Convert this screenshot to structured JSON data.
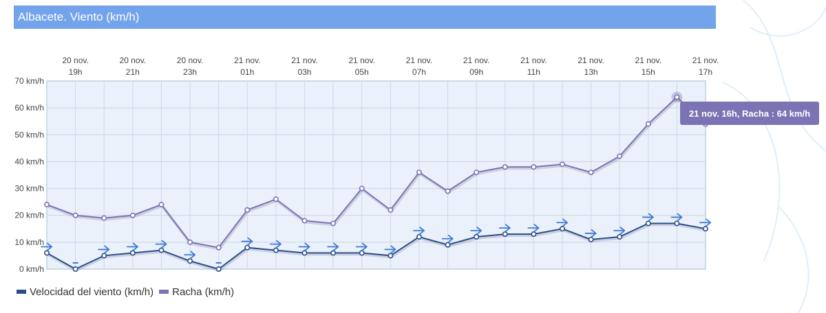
{
  "title": "Albacete. Viento (km/h)",
  "colors": {
    "title_bg": "#72a3eb",
    "plot_bg": "#eaf1fb",
    "plot_border": "#a8c3ee",
    "wind": "#2a4d8a",
    "gust": "#7b73b3",
    "arrow": "#3f7ad6",
    "tooltip_bg": "#7b73b3"
  },
  "chart_data": {
    "type": "line",
    "x": [
      "20 nov. 18h",
      "20 nov. 19h",
      "20 nov. 20h",
      "20 nov. 21h",
      "20 nov. 22h",
      "20 nov. 23h",
      "21 nov. 00h",
      "21 nov. 01h",
      "21 nov. 02h",
      "21 nov. 03h",
      "21 nov. 04h",
      "21 nov. 05h",
      "21 nov. 06h",
      "21 nov. 07h",
      "21 nov. 08h",
      "21 nov. 09h",
      "21 nov. 10h",
      "21 nov. 11h",
      "21 nov. 12h",
      "21 nov. 13h",
      "21 nov. 14h",
      "21 nov. 15h",
      "21 nov. 16h",
      "21 nov. 17h"
    ],
    "x_ticks": [
      {
        "top": "20 nov.",
        "bottom": "19h"
      },
      {
        "top": "20 nov.",
        "bottom": "21h"
      },
      {
        "top": "20 nov.",
        "bottom": "23h"
      },
      {
        "top": "21 nov.",
        "bottom": "01h"
      },
      {
        "top": "21 nov.",
        "bottom": "03h"
      },
      {
        "top": "21 nov.",
        "bottom": "05h"
      },
      {
        "top": "21 nov.",
        "bottom": "07h"
      },
      {
        "top": "21 nov.",
        "bottom": "09h"
      },
      {
        "top": "21 nov.",
        "bottom": "11h"
      },
      {
        "top": "21 nov.",
        "bottom": "13h"
      },
      {
        "top": "21 nov.",
        "bottom": "15h"
      },
      {
        "top": "21 nov.",
        "bottom": "17h"
      }
    ],
    "y_ticks": [
      "0 km/h",
      "10 km/h",
      "20 km/h",
      "30 km/h",
      "40 km/h",
      "50 km/h",
      "60 km/h",
      "70 km/h"
    ],
    "ylim": [
      0,
      70
    ],
    "grid": true,
    "legend_position": "bottom-left",
    "series": [
      {
        "name": "Velocidad del viento (km/h)",
        "values": [
          6,
          0,
          5,
          6,
          7,
          3,
          0,
          8,
          7,
          6,
          6,
          6,
          5,
          12,
          9,
          12,
          13,
          13,
          15,
          11,
          12,
          17,
          17,
          15
        ],
        "direction_arrows": [
          "right",
          "calm",
          "right",
          "right",
          "right",
          "right",
          "calm",
          "right",
          "right",
          "right",
          "right",
          "right",
          "right",
          "right",
          "right",
          "right",
          "right",
          "right",
          "right",
          "right",
          "right",
          "right",
          "right",
          "right"
        ]
      },
      {
        "name": "Racha (km/h)",
        "values": [
          24,
          20,
          19,
          20,
          24,
          10,
          8,
          22,
          26,
          18,
          17,
          30,
          22,
          36,
          29,
          36,
          38,
          38,
          39,
          36,
          42,
          54,
          64,
          54
        ]
      }
    ],
    "tooltip": {
      "index": 22,
      "text": "21 nov. 16h, Racha : 64 km/h"
    }
  }
}
